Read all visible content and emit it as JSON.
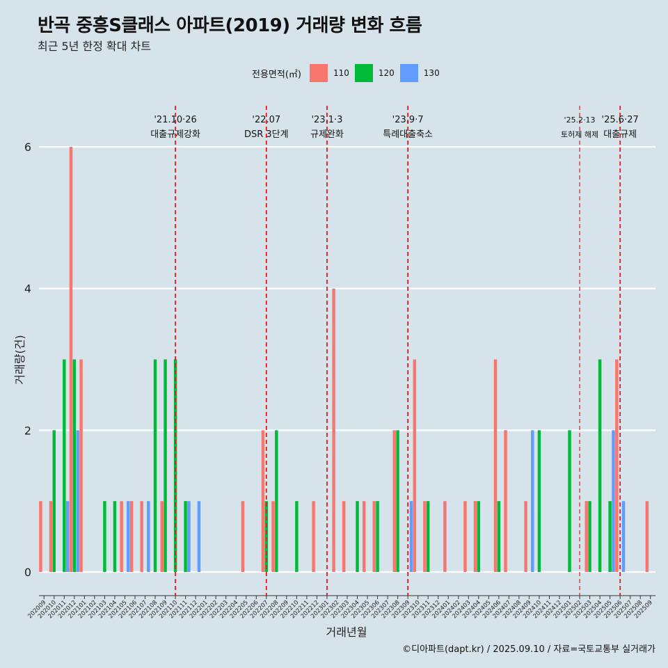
{
  "title": "반곡 중흥S클래스 아파트(2019) 거래량 변화 흐름",
  "subtitle": "최근 5년 한정 확대 차트",
  "caption": "©디아파트(dapt.kr) / 2025.09.10 / 자료=국토교통부 실거래가",
  "legend": {
    "title": "전용면적(㎡)",
    "items": [
      {
        "label": "110",
        "color": "#f8766d"
      },
      {
        "label": "120",
        "color": "#00ba38"
      },
      {
        "label": "130",
        "color": "#619cff"
      }
    ]
  },
  "chart_data": {
    "type": "bar",
    "xlabel": "거래년월",
    "ylabel": "거래량(건)",
    "ylim": [
      0,
      6
    ],
    "yticks": [
      0,
      2,
      4,
      6
    ],
    "grid": true,
    "categories": [
      "202009",
      "202010",
      "202011",
      "202012",
      "202101",
      "202102",
      "202103",
      "202104",
      "202105",
      "202106",
      "202107",
      "202108",
      "202109",
      "202110",
      "202111",
      "202112",
      "202201",
      "202202",
      "202203",
      "202204",
      "202205",
      "202206",
      "202207",
      "202208",
      "202209",
      "202210",
      "202211",
      "202212",
      "202301",
      "202302",
      "202303",
      "202304",
      "202305",
      "202306",
      "202307",
      "202308",
      "202309",
      "202310",
      "202311",
      "202312",
      "202401",
      "202402",
      "202403",
      "202404",
      "202405",
      "202406",
      "202407",
      "202408",
      "202409",
      "202410",
      "202411",
      "202412",
      "202501",
      "202502",
      "202503",
      "202504",
      "202505",
      "202506",
      "202507",
      "202508",
      "202509"
    ],
    "series": [
      {
        "name": "110",
        "color": "#f8766d",
        "values": [
          1,
          1,
          0,
          6,
          3,
          0,
          0,
          0,
          1,
          1,
          1,
          0,
          1,
          0,
          0,
          0,
          0,
          0,
          0,
          0,
          1,
          0,
          2,
          1,
          0,
          0,
          0,
          1,
          0,
          4,
          1,
          0,
          1,
          1,
          0,
          2,
          0,
          3,
          1,
          0,
          1,
          0,
          1,
          1,
          0,
          3,
          2,
          0,
          1,
          0,
          0,
          0,
          0,
          0,
          1,
          0,
          0,
          3,
          0,
          0,
          1
        ]
      },
      {
        "name": "120",
        "color": "#00ba38",
        "values": [
          0,
          2,
          3,
          3,
          0,
          0,
          1,
          1,
          0,
          0,
          0,
          3,
          3,
          3,
          1,
          0,
          0,
          0,
          0,
          0,
          0,
          0,
          1,
          2,
          0,
          1,
          0,
          0,
          0,
          0,
          0,
          1,
          0,
          1,
          0,
          2,
          0,
          0,
          1,
          0,
          0,
          0,
          0,
          1,
          0,
          1,
          0,
          0,
          0,
          2,
          0,
          0,
          2,
          0,
          1,
          3,
          1,
          0,
          0,
          0,
          0
        ]
      },
      {
        "name": "130",
        "color": "#619cff",
        "values": [
          0,
          0,
          1,
          2,
          0,
          0,
          0,
          0,
          1,
          0,
          1,
          0,
          0,
          0,
          1,
          1,
          0,
          0,
          0,
          0,
          0,
          0,
          0,
          0,
          0,
          0,
          0,
          0,
          0,
          0,
          0,
          0,
          0,
          0,
          0,
          0,
          1,
          0,
          0,
          0,
          0,
          0,
          0,
          0,
          0,
          0,
          0,
          0,
          2,
          0,
          0,
          0,
          0,
          0,
          0,
          0,
          2,
          1,
          0,
          0,
          0
        ]
      }
    ],
    "annotations": [
      {
        "month": "202110",
        "date": "'21.10·26",
        "text": "대출규제강화"
      },
      {
        "month": "202207",
        "date": "'22.07",
        "text": "DSR 3단계"
      },
      {
        "month": "202301",
        "date": "'23.1·3",
        "text": "규제완화"
      },
      {
        "month": "202309",
        "date": "'23.9·7",
        "text": "특례대출축소"
      },
      {
        "month": "202502",
        "date": "'25.2·13",
        "text": "토허제 해제"
      },
      {
        "month": "202506",
        "date": "'25.6·27",
        "text": "대출규제"
      }
    ]
  }
}
